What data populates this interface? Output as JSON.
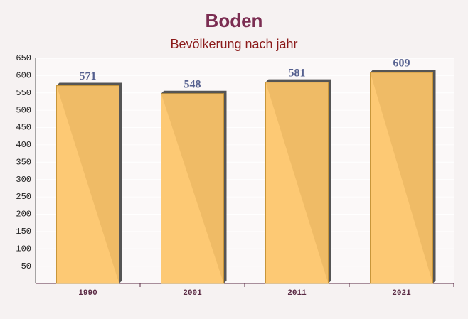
{
  "chart_data": {
    "type": "bar",
    "title": "Boden",
    "subtitle": "Bevölkerung nach jahr",
    "categories": [
      "1990",
      "2001",
      "2011",
      "2021"
    ],
    "values": [
      571,
      548,
      581,
      609
    ],
    "color": "#fdc468",
    "ylim": [
      0,
      650
    ],
    "yticks": [
      50,
      100,
      150,
      200,
      250,
      300,
      350,
      400,
      450,
      500,
      550,
      600,
      650
    ],
    "grid": true
  }
}
